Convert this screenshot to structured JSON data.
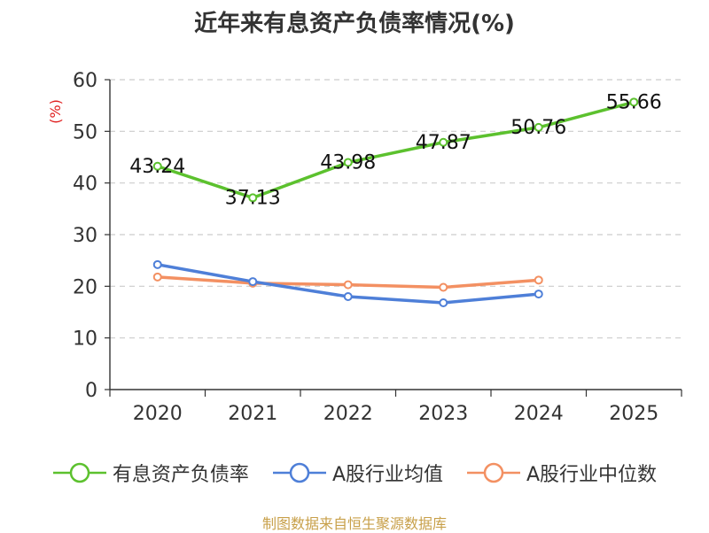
{
  "chart_data": {
    "type": "line",
    "title": "近年来有息资产负债率情况(%)",
    "ylabel": "(%)",
    "xlabel": "",
    "ylim": [
      0,
      60
    ],
    "yticks": [
      0,
      10,
      20,
      30,
      40,
      50,
      60
    ],
    "categories": [
      "2020",
      "2021",
      "2022",
      "2023",
      "2024",
      "2025"
    ],
    "grid": true,
    "legend_position": "bottom",
    "series": [
      {
        "name": "有息资产负债率",
        "color": "#5cc12e",
        "values": [
          43.24,
          37.13,
          43.98,
          47.87,
          50.76,
          55.66
        ],
        "labels": [
          "43.24",
          "37.13",
          "43.98",
          "47.87",
          "50.76",
          "55.66"
        ]
      },
      {
        "name": "A股行业均值",
        "color": "#4e7fd8",
        "values": [
          24.2,
          20.9,
          18.0,
          16.8,
          18.5,
          null
        ]
      },
      {
        "name": "A股行业中位数",
        "color": "#f39062",
        "values": [
          21.8,
          20.6,
          20.3,
          19.8,
          21.2,
          null
        ]
      }
    ]
  },
  "source": "制图数据来自恒生聚源数据库"
}
